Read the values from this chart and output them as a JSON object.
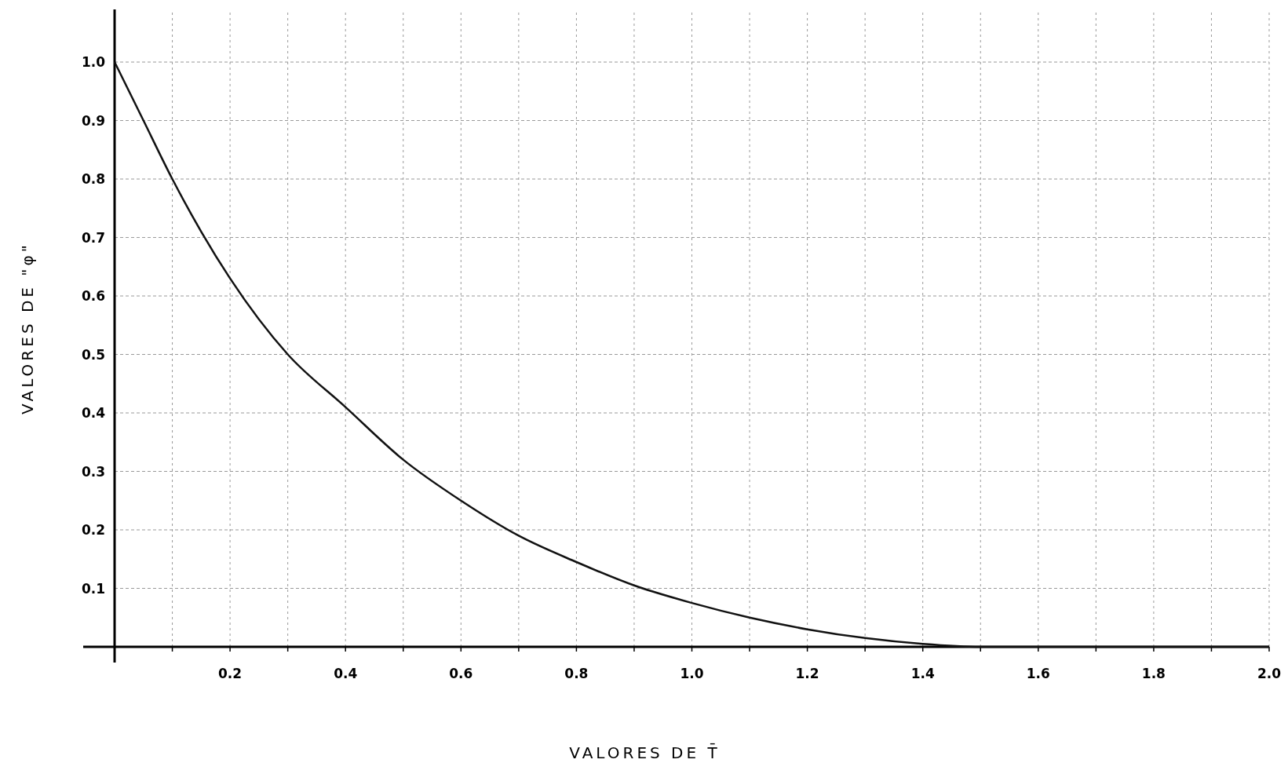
{
  "chart_data": {
    "type": "line",
    "xlabel": "VALORES DE T̄",
    "ylabel": "VALORES DE \"φ\"",
    "x": [
      0,
      0.05,
      0.1,
      0.15,
      0.2,
      0.3,
      0.4,
      0.5,
      0.6,
      0.7,
      0.8,
      0.9,
      1.0,
      1.1,
      1.2,
      1.3,
      1.4,
      1.5,
      1.6,
      1.8,
      2.0
    ],
    "series": [
      {
        "color": "#111111",
        "values": [
          1.0,
          0.9,
          0.8,
          0.71,
          0.63,
          0.5,
          0.41,
          0.32,
          0.25,
          0.19,
          0.145,
          0.105,
          0.075,
          0.05,
          0.03,
          0.015,
          0.005,
          0.0,
          0.0,
          0.0,
          0.0
        ]
      }
    ],
    "xlim": [
      0,
      2.0
    ],
    "ylim": [
      0,
      1.09
    ],
    "xticks": [
      {
        "value": 0.1,
        "label": null
      },
      0.2,
      {
        "value": 0.3,
        "label": null
      },
      0.4,
      {
        "value": 0.5,
        "label": null
      },
      0.6,
      {
        "value": 0.7,
        "label": null
      },
      0.8,
      {
        "value": 0.9,
        "label": null
      },
      {
        "value": 1,
        "label": "1.0"
      },
      {
        "value": 1.1,
        "label": null
      },
      1.2,
      {
        "value": 1.3,
        "label": null
      },
      1.4,
      {
        "value": 1.5,
        "label": null
      },
      1.6,
      {
        "value": 1.7,
        "label": null
      },
      1.8,
      {
        "value": 1.9,
        "label": null
      },
      {
        "value": 2,
        "label": "2.0"
      }
    ],
    "yticks": [
      0.1,
      0.2,
      0.3,
      0.4,
      0.5,
      0.6,
      0.7,
      0.8,
      0.9,
      {
        "value": 1,
        "label": "1.0"
      }
    ],
    "grid": true,
    "marker": "none",
    "line_style": "solid"
  }
}
